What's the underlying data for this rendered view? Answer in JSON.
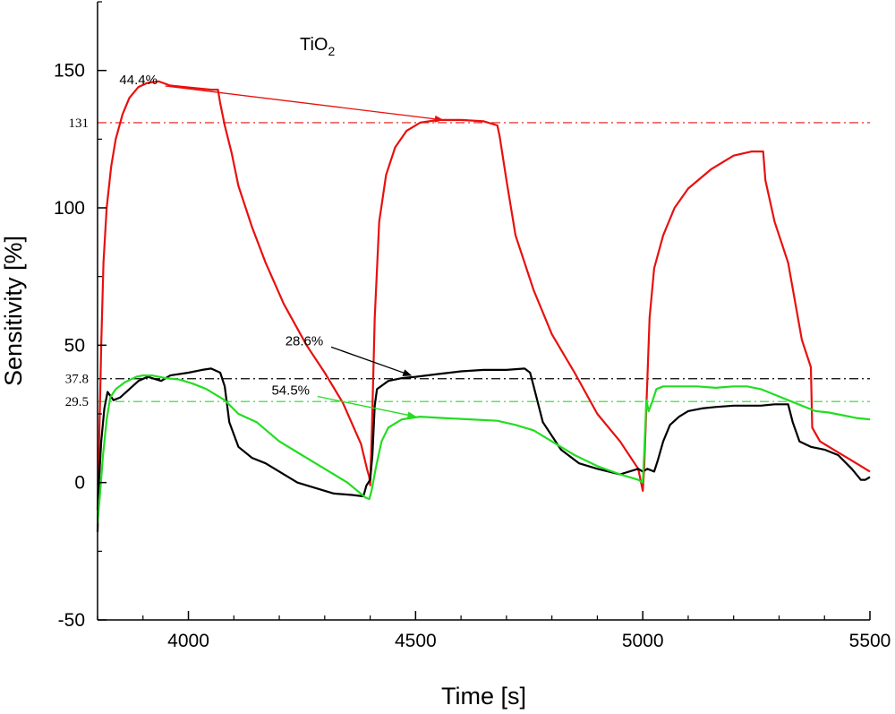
{
  "chart_data": {
    "type": "line",
    "title": "TiO",
    "title_subscript": "2",
    "xlabel": "Time [s]",
    "ylabel": "Sensitivity [%]",
    "xlim": [
      3800,
      5500
    ],
    "ylim": [
      -50,
      175
    ],
    "xticks": [
      4000,
      4500,
      5000,
      5500
    ],
    "yticks": [
      -50,
      0,
      50,
      100,
      150
    ],
    "x_minor_step": 100,
    "y_minor_step": 25,
    "grid": false,
    "reference_lines": [
      {
        "label": "131",
        "y": 131,
        "color": "#e8100e"
      },
      {
        "label": "37.8",
        "y": 37.8,
        "color": "#000000"
      },
      {
        "label": "29.5",
        "y": 29.5,
        "color": "#22dd22"
      }
    ],
    "annotations": [
      {
        "text": "44.4%",
        "color": "#e8100e",
        "text_x": 3890,
        "text_y": 145,
        "arrow_to_x": 4560,
        "arrow_to_y": 132
      },
      {
        "text": "28.6%",
        "color": "#000000",
        "text_x": 4255,
        "text_y": 50,
        "arrow_to_x": 4490,
        "arrow_to_y": 39
      },
      {
        "text": "54.5%",
        "color": "#22dd22",
        "text_x": 4225,
        "text_y": 32,
        "arrow_to_x": 4500,
        "arrow_to_y": 24
      }
    ],
    "series": [
      {
        "color": "#e8100e",
        "points": [
          [
            3800,
            -10
          ],
          [
            3803,
            10
          ],
          [
            3808,
            50
          ],
          [
            3813,
            80
          ],
          [
            3820,
            100
          ],
          [
            3830,
            115
          ],
          [
            3840,
            125
          ],
          [
            3855,
            134
          ],
          [
            3870,
            140
          ],
          [
            3890,
            144
          ],
          [
            3910,
            145.5
          ],
          [
            3935,
            146
          ],
          [
            3960,
            144.5
          ],
          [
            3990,
            144
          ],
          [
            4020,
            143.5
          ],
          [
            4050,
            143
          ],
          [
            4065,
            143
          ],
          [
            4070,
            138
          ],
          [
            4080,
            130
          ],
          [
            4095,
            120
          ],
          [
            4110,
            108
          ],
          [
            4140,
            93
          ],
          [
            4170,
            80
          ],
          [
            4210,
            65
          ],
          [
            4260,
            50
          ],
          [
            4300,
            40
          ],
          [
            4340,
            29
          ],
          [
            4380,
            14
          ],
          [
            4393,
            5
          ],
          [
            4398,
            2
          ],
          [
            4400,
            -1
          ],
          [
            4404,
            20
          ],
          [
            4410,
            60
          ],
          [
            4420,
            95
          ],
          [
            4435,
            112
          ],
          [
            4455,
            122
          ],
          [
            4480,
            128
          ],
          [
            4510,
            131
          ],
          [
            4550,
            132
          ],
          [
            4600,
            132
          ],
          [
            4650,
            131.5
          ],
          [
            4680,
            130
          ],
          [
            4685,
            126
          ],
          [
            4700,
            110
          ],
          [
            4720,
            90
          ],
          [
            4760,
            70
          ],
          [
            4800,
            54
          ],
          [
            4850,
            40
          ],
          [
            4900,
            25
          ],
          [
            4950,
            15
          ],
          [
            4990,
            5
          ],
          [
            5000,
            -3
          ],
          [
            5003,
            5
          ],
          [
            5015,
            60
          ],
          [
            5025,
            78
          ],
          [
            5045,
            90
          ],
          [
            5070,
            100
          ],
          [
            5100,
            107
          ],
          [
            5150,
            114
          ],
          [
            5200,
            119
          ],
          [
            5240,
            120.5
          ],
          [
            5265,
            120.5
          ],
          [
            5270,
            110
          ],
          [
            5290,
            95
          ],
          [
            5320,
            80
          ],
          [
            5350,
            52
          ],
          [
            5370,
            42
          ],
          [
            5373,
            20
          ],
          [
            5390,
            15
          ],
          [
            5420,
            12
          ],
          [
            5460,
            8
          ],
          [
            5500,
            4
          ]
        ]
      },
      {
        "color": "#000000",
        "points": [
          [
            3800,
            -18
          ],
          [
            3803,
            0
          ],
          [
            3808,
            15
          ],
          [
            3815,
            27
          ],
          [
            3822,
            33
          ],
          [
            3835,
            30
          ],
          [
            3850,
            31
          ],
          [
            3870,
            34
          ],
          [
            3890,
            37
          ],
          [
            3910,
            38.5
          ],
          [
            3940,
            37
          ],
          [
            3960,
            39
          ],
          [
            4000,
            40
          ],
          [
            4030,
            41
          ],
          [
            4050,
            41.5
          ],
          [
            4070,
            40
          ],
          [
            4080,
            35
          ],
          [
            4090,
            22
          ],
          [
            4110,
            13
          ],
          [
            4140,
            9
          ],
          [
            4170,
            7
          ],
          [
            4200,
            4
          ],
          [
            4240,
            0
          ],
          [
            4280,
            -2
          ],
          [
            4320,
            -4
          ],
          [
            4360,
            -4.5
          ],
          [
            4385,
            -5
          ],
          [
            4392,
            -1
          ],
          [
            4400,
            1
          ],
          [
            4405,
            10
          ],
          [
            4410,
            28
          ],
          [
            4415,
            34
          ],
          [
            4440,
            37
          ],
          [
            4470,
            38
          ],
          [
            4500,
            38.5
          ],
          [
            4550,
            39.5
          ],
          [
            4600,
            40.5
          ],
          [
            4650,
            41
          ],
          [
            4700,
            41
          ],
          [
            4740,
            41.5
          ],
          [
            4752,
            40
          ],
          [
            4760,
            35
          ],
          [
            4780,
            22
          ],
          [
            4820,
            12
          ],
          [
            4860,
            7
          ],
          [
            4900,
            5
          ],
          [
            4950,
            3
          ],
          [
            4990,
            5
          ],
          [
            5000,
            4
          ],
          [
            5010,
            5
          ],
          [
            5025,
            4
          ],
          [
            5033,
            8
          ],
          [
            5045,
            15
          ],
          [
            5060,
            21
          ],
          [
            5080,
            24
          ],
          [
            5100,
            26
          ],
          [
            5130,
            27
          ],
          [
            5160,
            27.5
          ],
          [
            5200,
            28
          ],
          [
            5260,
            28
          ],
          [
            5290,
            28.5
          ],
          [
            5320,
            28.5
          ],
          [
            5330,
            22
          ],
          [
            5345,
            15
          ],
          [
            5370,
            13
          ],
          [
            5400,
            12
          ],
          [
            5430,
            10
          ],
          [
            5460,
            5
          ],
          [
            5480,
            1
          ],
          [
            5490,
            1
          ],
          [
            5500,
            2
          ]
        ]
      },
      {
        "color": "#22dd22",
        "points": [
          [
            3800,
            -15
          ],
          [
            3805,
            -5
          ],
          [
            3812,
            10
          ],
          [
            3820,
            23
          ],
          [
            3828,
            31
          ],
          [
            3840,
            34
          ],
          [
            3860,
            36.5
          ],
          [
            3885,
            38.5
          ],
          [
            3900,
            39
          ],
          [
            3920,
            39
          ],
          [
            3950,
            38
          ],
          [
            3980,
            37.5
          ],
          [
            4010,
            36
          ],
          [
            4040,
            34
          ],
          [
            4080,
            30
          ],
          [
            4110,
            25
          ],
          [
            4150,
            22
          ],
          [
            4200,
            15
          ],
          [
            4250,
            10
          ],
          [
            4300,
            5
          ],
          [
            4350,
            0
          ],
          [
            4390,
            -5.5
          ],
          [
            4398,
            -6
          ],
          [
            4403,
            -3
          ],
          [
            4412,
            5
          ],
          [
            4425,
            15
          ],
          [
            4440,
            20
          ],
          [
            4470,
            23
          ],
          [
            4510,
            24
          ],
          [
            4560,
            23.5
          ],
          [
            4620,
            23
          ],
          [
            4680,
            22.5
          ],
          [
            4720,
            21
          ],
          [
            4760,
            19
          ],
          [
            4800,
            15
          ],
          [
            4850,
            10
          ],
          [
            4900,
            6
          ],
          [
            4950,
            3
          ],
          [
            4990,
            1
          ],
          [
            5000,
            0
          ],
          [
            5003,
            10
          ],
          [
            5008,
            30
          ],
          [
            5013,
            26
          ],
          [
            5020,
            29
          ],
          [
            5030,
            34
          ],
          [
            5045,
            35
          ],
          [
            5080,
            35
          ],
          [
            5120,
            35
          ],
          [
            5160,
            34.5
          ],
          [
            5200,
            35
          ],
          [
            5230,
            35
          ],
          [
            5260,
            34
          ],
          [
            5290,
            32
          ],
          [
            5320,
            30
          ],
          [
            5350,
            28
          ],
          [
            5380,
            26
          ],
          [
            5410,
            25.5
          ],
          [
            5440,
            24.5
          ],
          [
            5470,
            23.5
          ],
          [
            5500,
            23
          ]
        ]
      }
    ]
  }
}
